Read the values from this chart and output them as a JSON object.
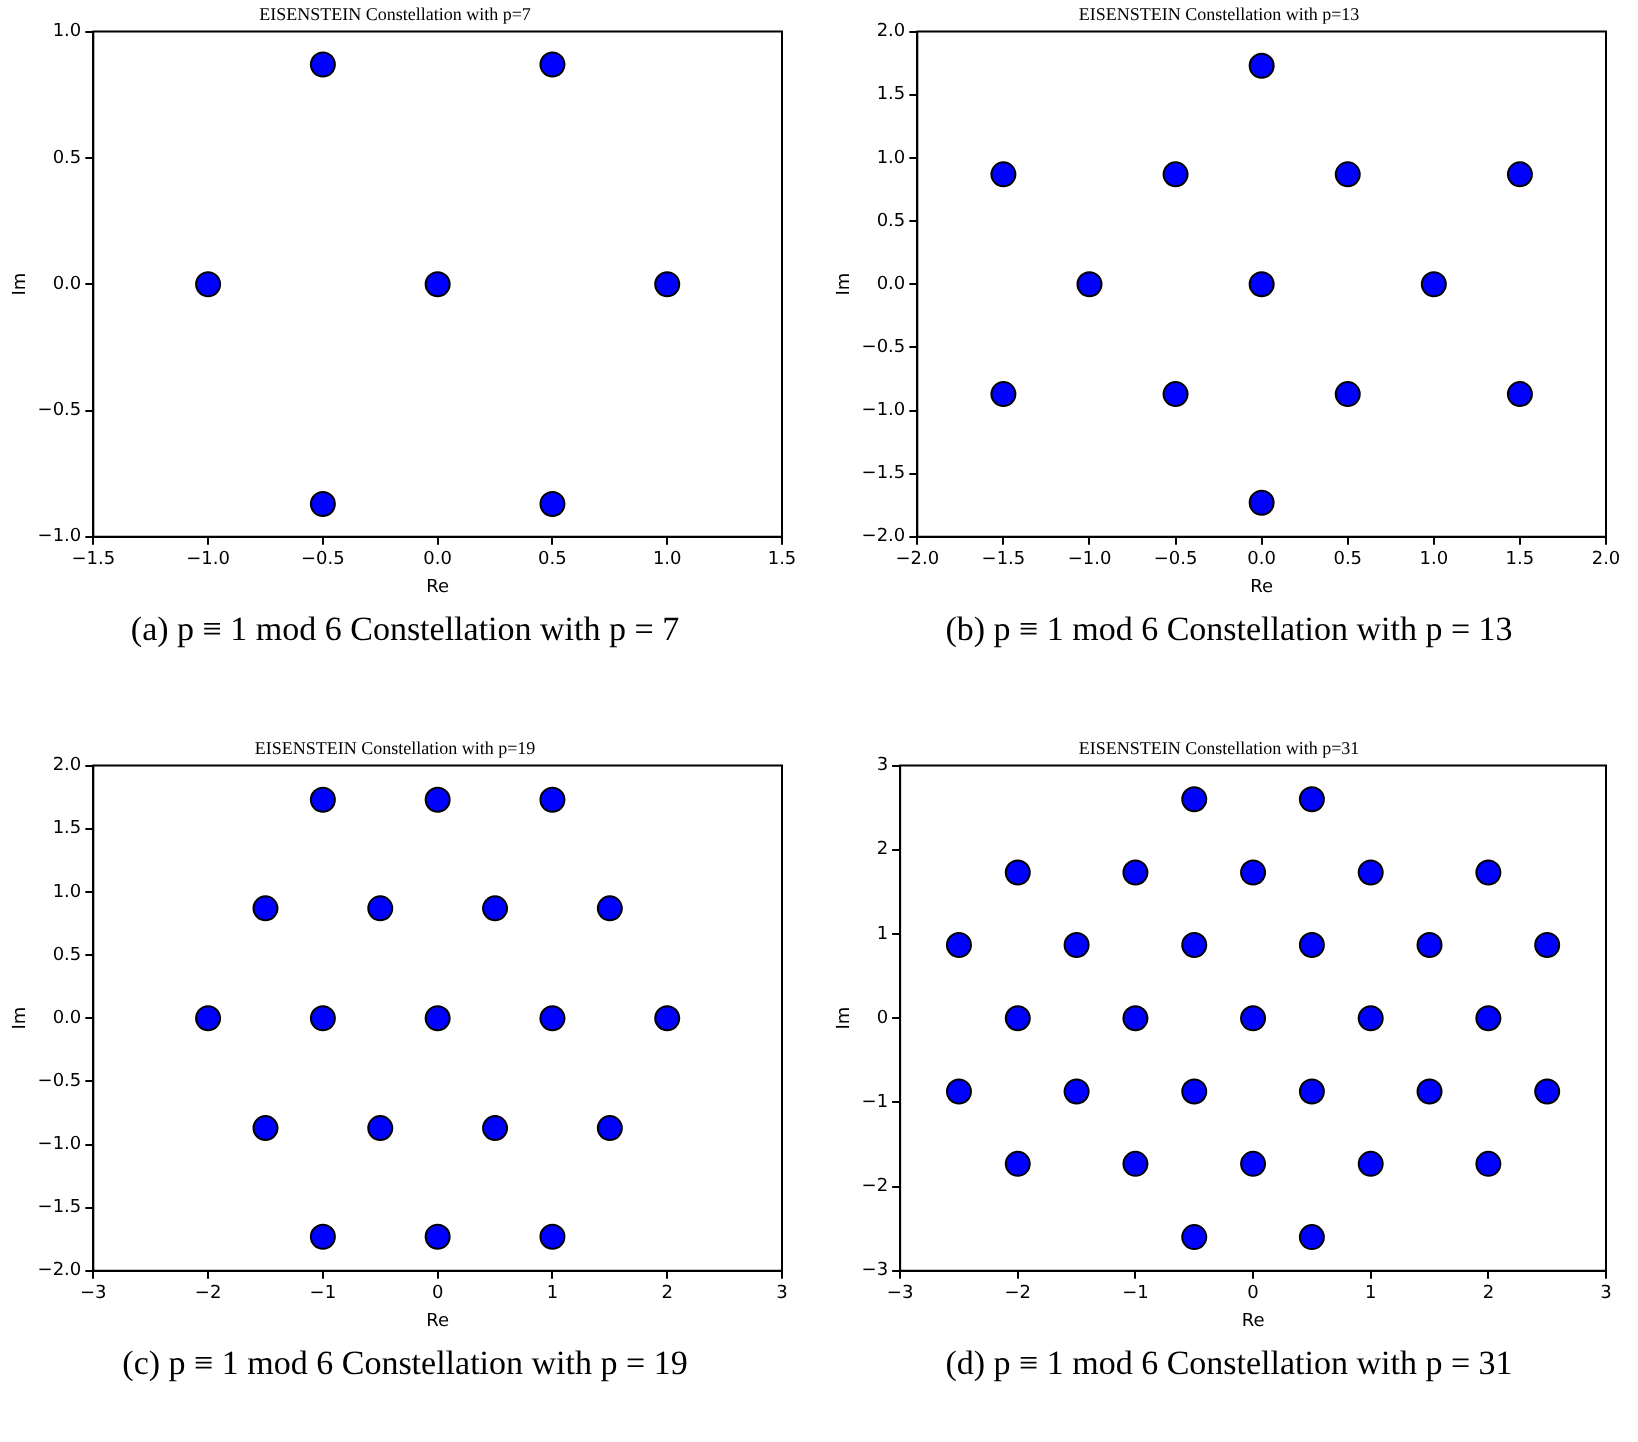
{
  "chart_data": [
    {
      "type": "scatter",
      "title": "EISENSTEIN Constellation with p=7",
      "xlabel": "Re",
      "ylabel": "Im",
      "marker": "circle",
      "grid": false,
      "legend": false,
      "series": [
        {
          "color": "#0000ff",
          "x": [
            -0.5,
            0.5,
            -1,
            0,
            1,
            -0.5,
            0.5
          ],
          "values": [
            0.87,
            0.87,
            0,
            0,
            0,
            -0.87,
            -0.87
          ]
        }
      ],
      "xlim": [
        -1.5,
        1.5
      ],
      "xticks": [
        {
          "value": -1.5,
          "label": "−1.5"
        },
        {
          "value": -1,
          "label": "−1.0"
        },
        {
          "value": -0.5,
          "label": "−0.5"
        },
        {
          "value": 0,
          "label": "0.0"
        },
        0.5,
        {
          "value": 1,
          "label": "1.0"
        },
        1.5
      ],
      "ylim": [
        -1,
        1
      ],
      "yticks": [
        {
          "value": -1,
          "label": "−1.0"
        },
        {
          "value": -0.5,
          "label": "−0.5"
        },
        {
          "value": 0,
          "label": "0.0"
        },
        0.5,
        {
          "value": 1,
          "label": "1.0"
        }
      ],
      "annotations": [
        "(a) p ≡ 1 mod 6 Constellation with p = 7"
      ]
    },
    {
      "type": "scatter",
      "title": "EISENSTEIN Constellation with p=13",
      "xlabel": "Re",
      "ylabel": "Im",
      "marker": "circle",
      "grid": false,
      "legend": false,
      "series": [
        {
          "color": "#0000ff",
          "x": [
            0,
            -1.5,
            -0.5,
            0.5,
            1.5,
            -1,
            0,
            1,
            -1.5,
            -0.5,
            0.5,
            1.5,
            0
          ],
          "values": [
            1.73,
            0.87,
            0.87,
            0.87,
            0.87,
            0,
            0,
            0,
            -0.87,
            -0.87,
            -0.87,
            -0.87,
            -1.73
          ]
        }
      ],
      "xlim": [
        -2,
        2
      ],
      "xticks": [
        {
          "value": -2,
          "label": "−2.0"
        },
        {
          "value": -1.5,
          "label": "−1.5"
        },
        {
          "value": -1,
          "label": "−1.0"
        },
        {
          "value": -0.5,
          "label": "−0.5"
        },
        {
          "value": 0,
          "label": "0.0"
        },
        0.5,
        {
          "value": 1,
          "label": "1.0"
        },
        1.5,
        {
          "value": 2,
          "label": "2.0"
        }
      ],
      "ylim": [
        -2,
        2
      ],
      "yticks": [
        {
          "value": -2,
          "label": "−2.0"
        },
        {
          "value": -1.5,
          "label": "−1.5"
        },
        {
          "value": -1,
          "label": "−1.0"
        },
        {
          "value": -0.5,
          "label": "−0.5"
        },
        {
          "value": 0,
          "label": "0.0"
        },
        0.5,
        {
          "value": 1,
          "label": "1.0"
        },
        1.5,
        {
          "value": 2,
          "label": "2.0"
        }
      ],
      "annotations": [
        "(b) p ≡ 1 mod 6 Constellation with p = 13"
      ]
    },
    {
      "type": "scatter",
      "title": "EISENSTEIN Constellation with p=19",
      "xlabel": "Re",
      "ylabel": "Im",
      "marker": "circle",
      "grid": false,
      "legend": false,
      "series": [
        {
          "color": "#0000ff",
          "x": [
            -1,
            0,
            1,
            -1.5,
            -0.5,
            0.5,
            1.5,
            -2,
            -1,
            0,
            1,
            2,
            -1.5,
            -0.5,
            0.5,
            1.5,
            -1,
            0,
            1
          ],
          "values": [
            1.73,
            1.73,
            1.73,
            0.87,
            0.87,
            0.87,
            0.87,
            0,
            0,
            0,
            0,
            0,
            -0.87,
            -0.87,
            -0.87,
            -0.87,
            -1.73,
            -1.73,
            -1.73
          ]
        }
      ],
      "xlim": [
        -3,
        3
      ],
      "xticks": [
        {
          "value": -3,
          "label": "−3"
        },
        {
          "value": -2,
          "label": "−2"
        },
        {
          "value": -1,
          "label": "−1"
        },
        0,
        1,
        2,
        3
      ],
      "ylim": [
        -2,
        2
      ],
      "yticks": [
        {
          "value": -2,
          "label": "−2.0"
        },
        {
          "value": -1.5,
          "label": "−1.5"
        },
        {
          "value": -1,
          "label": "−1.0"
        },
        {
          "value": -0.5,
          "label": "−0.5"
        },
        {
          "value": 0,
          "label": "0.0"
        },
        0.5,
        {
          "value": 1,
          "label": "1.0"
        },
        1.5,
        {
          "value": 2,
          "label": "2.0"
        }
      ],
      "annotations": [
        "(c) p ≡ 1 mod 6 Constellation with p = 19"
      ]
    },
    {
      "type": "scatter",
      "title": "EISENSTEIN Constellation with p=31",
      "xlabel": "Re",
      "ylabel": "Im",
      "marker": "circle",
      "grid": false,
      "legend": false,
      "series": [
        {
          "color": "#0000ff",
          "x": [
            -0.5,
            0.5,
            -2,
            -1,
            0,
            1,
            2,
            -2.5,
            -1.5,
            -0.5,
            0.5,
            1.5,
            2.5,
            -2,
            -1,
            0,
            1,
            2,
            -2.5,
            -1.5,
            -0.5,
            0.5,
            1.5,
            2.5,
            -2,
            -1,
            0,
            1,
            2,
            -0.5,
            0.5
          ],
          "values": [
            2.6,
            2.6,
            1.73,
            1.73,
            1.73,
            1.73,
            1.73,
            0.87,
            0.87,
            0.87,
            0.87,
            0.87,
            0.87,
            0,
            0,
            0,
            0,
            0,
            -0.87,
            -0.87,
            -0.87,
            -0.87,
            -0.87,
            -0.87,
            -1.73,
            -1.73,
            -1.73,
            -1.73,
            -1.73,
            -2.6,
            -2.6
          ]
        }
      ],
      "xlim": [
        -3,
        3
      ],
      "xticks": [
        {
          "value": -3,
          "label": "−3"
        },
        {
          "value": -2,
          "label": "−2"
        },
        {
          "value": -1,
          "label": "−1"
        },
        0,
        1,
        2,
        3
      ],
      "ylim": [
        -3,
        3
      ],
      "yticks": [
        {
          "value": -3,
          "label": "−3"
        },
        {
          "value": -2,
          "label": "−2"
        },
        {
          "value": -1,
          "label": "−1"
        },
        0,
        1,
        2,
        3
      ],
      "annotations": [
        "(d) p ≡ 1 mod 6 Constellation with p = 31"
      ]
    }
  ]
}
